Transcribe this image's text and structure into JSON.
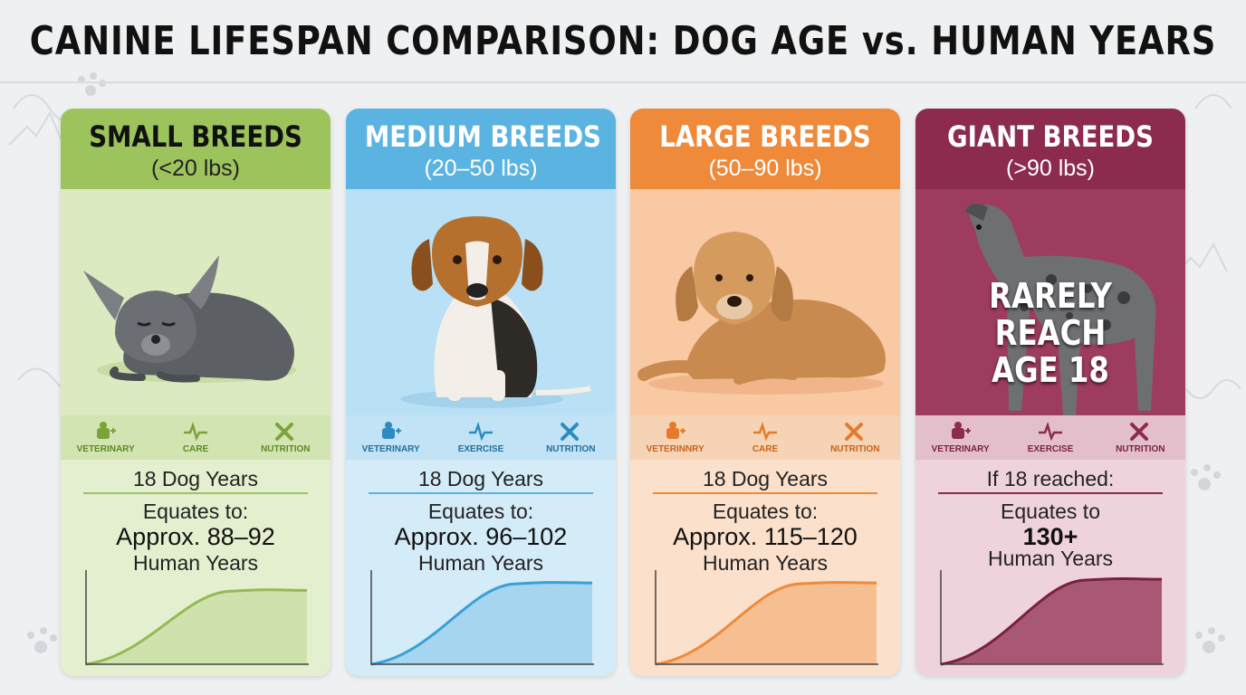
{
  "title": "CANINE LIFESPAN COMPARISON: DOG AGE vs. HUMAN YEARS",
  "colors": {
    "small": "#93bb52",
    "medium": "#5cb1dc",
    "large": "#ee8a3a",
    "giant": "#8c2a4f",
    "background": "#eef0f2"
  },
  "cards": [
    {
      "title": "SMALL BREEDS",
      "subtitle": "(<20 lbs)",
      "dog": "chihuahua-illustration",
      "icons": [
        {
          "icon": "veterinary-icon",
          "label": "VETERINARY"
        },
        {
          "icon": "heartbeat-icon",
          "label": "CARE"
        },
        {
          "icon": "tools-icon",
          "label": "NUTRITION"
        }
      ],
      "dog_years": "18 Dog Years",
      "equates": "Equates to:",
      "approx": "Approx. 88–92",
      "human": "Human Years",
      "curve_level": 0.8
    },
    {
      "title": "MEDIUM BREEDS",
      "subtitle": "(20–50 lbs)",
      "dog": "beagle-illustration",
      "icons": [
        {
          "icon": "veterinary-icon",
          "label": "VETERINARY"
        },
        {
          "icon": "heartbeat-icon",
          "label": "EXERCISE"
        },
        {
          "icon": "tools-icon",
          "label": "NUTRITION"
        }
      ],
      "dog_years": "18 Dog Years",
      "equates": "Equates to:",
      "approx": "Approx. 96–102",
      "human": "Human Years",
      "curve_level": 0.88
    },
    {
      "title": "LARGE BREEDS",
      "subtitle": "(50–90 lbs)",
      "dog": "golden-retriever-illustration",
      "icons": [
        {
          "icon": "veterinary-icon",
          "label": "VETERINNRY"
        },
        {
          "icon": "heartbeat-icon",
          "label": "CARE"
        },
        {
          "icon": "tools-icon",
          "label": "NUTRITION"
        }
      ],
      "dog_years": "18 Dog Years",
      "equates": "Equates to:",
      "approx": "Approx. 115–120",
      "human": "Human Years",
      "curve_level": 0.88
    },
    {
      "title": "GIANT BREEDS",
      "subtitle": "(>90 lbs)",
      "dog": "great-dane-illustration",
      "overlay": "RARELY\nREACH\nAGE 18",
      "icons": [
        {
          "icon": "veterinary-icon",
          "label": "VETERINARY"
        },
        {
          "icon": "heartbeat-icon",
          "label": "EXERCISE"
        },
        {
          "icon": "tools-icon",
          "label": "NUTRITION"
        }
      ],
      "dog_years": "If 18 reached:",
      "equates": "Equates to",
      "approx": "130+",
      "human": "Human Years",
      "curve_level": 0.92
    }
  ]
}
